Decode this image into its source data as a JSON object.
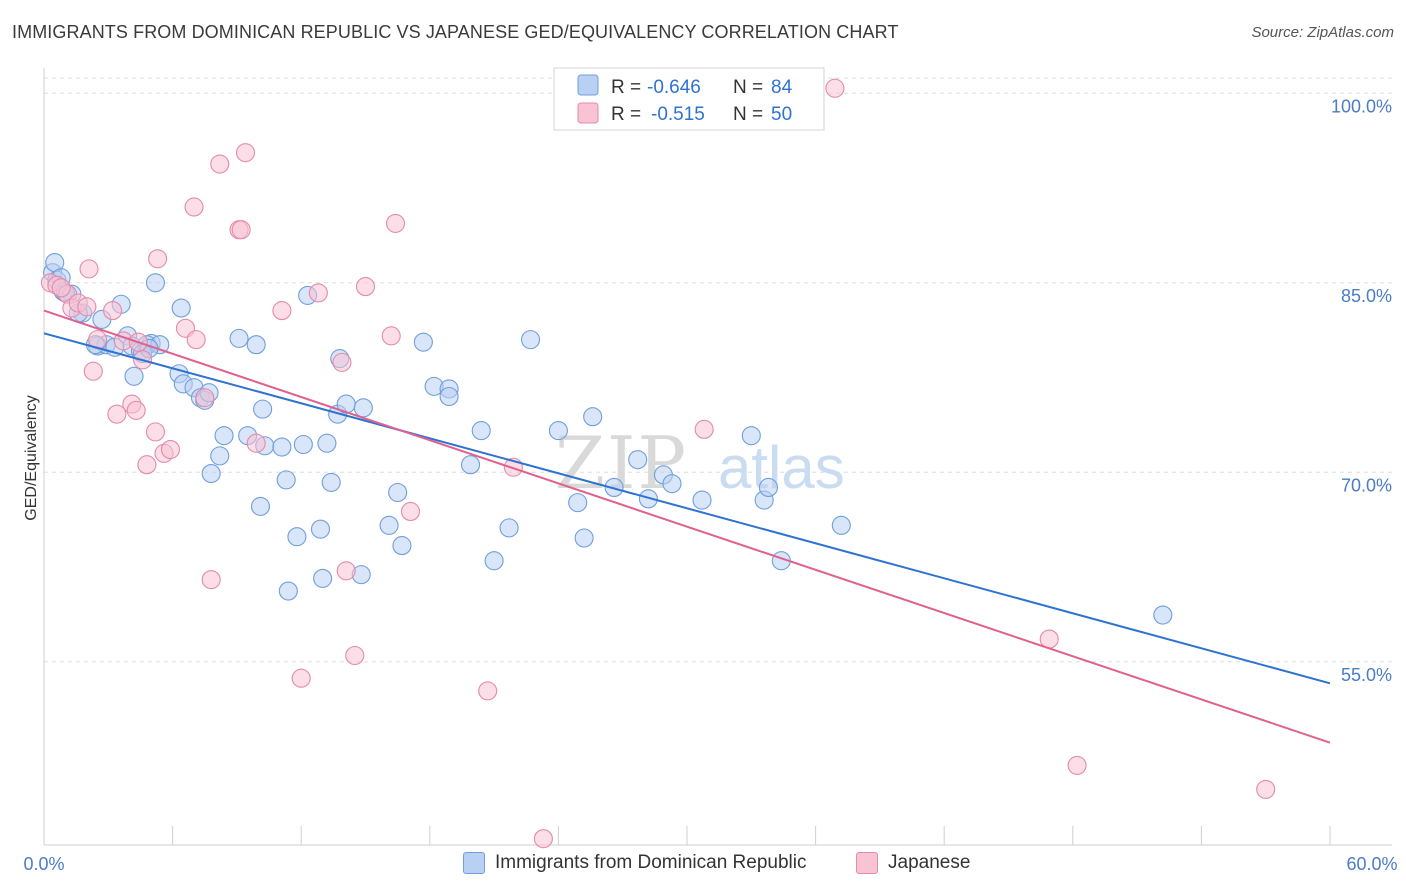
{
  "header": {
    "title": "IMMIGRANTS FROM DOMINICAN REPUBLIC VS JAPANESE GED/EQUIVALENCY CORRELATION CHART",
    "source": "Source: ZipAtlas.com"
  },
  "watermark": {
    "part1": "ZIP",
    "part2": "atlas"
  },
  "colors": {
    "blue_fill": "#b9d0f2",
    "blue_stroke": "#6f9fdc",
    "blue_line": "#2e72d2",
    "pink_fill": "#f8c3d3",
    "pink_stroke": "#e58aa8",
    "pink_line": "#e0618e",
    "tick_text": "#4a7cc7",
    "grid": "#dddddd"
  },
  "legend": {
    "rows": [
      {
        "r_label": "R =",
        "r_value": "-0.646",
        "n_label": "N =",
        "n_value": "84"
      },
      {
        "r_label": "R =",
        "r_value": "-0.515",
        "n_label": "N =",
        "n_value": "50"
      }
    ]
  },
  "bottom_legend": {
    "items": [
      {
        "label": "Immigrants from Dominican Republic"
      },
      {
        "label": "Japanese"
      }
    ]
  },
  "chart_data": {
    "type": "scatter",
    "title": "IMMIGRANTS FROM DOMINICAN REPUBLIC VS JAPANESE GED/EQUIVALENCY CORRELATION CHART",
    "xlabel": "",
    "ylabel": "GED/Equivalency",
    "xlim": [
      0,
      60
    ],
    "ylim": [
      40.5,
      102
    ],
    "x_tick_labels": [
      "0.0%",
      "60.0%"
    ],
    "y_ticks": [
      55,
      70,
      85,
      100
    ],
    "y_tick_labels": [
      "55.0%",
      "70.0%",
      "85.0%",
      "100.0%"
    ],
    "grid": "horizontal dashed",
    "legend_position": "top-center",
    "series": [
      {
        "name": "Immigrants from Dominican Republic",
        "color": "#b9d0f2",
        "trend": {
          "x": [
            0,
            60
          ],
          "y": [
            81.0,
            53.3
          ]
        },
        "points": [
          [
            0.4,
            85.8
          ],
          [
            0.6,
            85.2
          ],
          [
            0.9,
            84.3
          ],
          [
            1.3,
            84.1
          ],
          [
            1.8,
            82.6
          ],
          [
            2.5,
            80.0
          ],
          [
            2.7,
            82.1
          ],
          [
            3.6,
            83.3
          ],
          [
            3.9,
            80.8
          ],
          [
            4.1,
            80.0
          ],
          [
            4.5,
            79.6
          ],
          [
            5.2,
            85.0
          ],
          [
            5.0,
            80.2
          ],
          [
            4.8,
            80.1
          ],
          [
            2.9,
            80.1
          ],
          [
            4.2,
            77.6
          ],
          [
            5.4,
            80.1
          ],
          [
            4.6,
            79.4
          ],
          [
            6.4,
            83.0
          ],
          [
            6.3,
            77.8
          ],
          [
            6.5,
            77.0
          ],
          [
            7.0,
            76.7
          ],
          [
            7.3,
            75.9
          ],
          [
            7.5,
            75.7
          ],
          [
            7.7,
            76.3
          ],
          [
            8.4,
            72.9
          ],
          [
            8.2,
            71.3
          ],
          [
            7.8,
            69.9
          ],
          [
            9.1,
            80.6
          ],
          [
            9.9,
            80.1
          ],
          [
            10.2,
            75.0
          ],
          [
            9.5,
            72.9
          ],
          [
            10.3,
            72.1
          ],
          [
            10.1,
            67.3
          ],
          [
            11.3,
            69.4
          ],
          [
            11.1,
            72.0
          ],
          [
            12.1,
            72.2
          ],
          [
            11.8,
            64.9
          ],
          [
            11.4,
            60.6
          ],
          [
            12.3,
            84.0
          ],
          [
            13.0,
            61.6
          ],
          [
            13.2,
            72.3
          ],
          [
            12.9,
            65.5
          ],
          [
            13.7,
            74.6
          ],
          [
            14.1,
            75.4
          ],
          [
            13.4,
            69.2
          ],
          [
            13.8,
            79.0
          ],
          [
            14.9,
            75.1
          ],
          [
            14.8,
            61.9
          ],
          [
            16.1,
            65.8
          ],
          [
            16.7,
            64.2
          ],
          [
            16.5,
            68.4
          ],
          [
            17.7,
            80.3
          ],
          [
            18.2,
            76.8
          ],
          [
            18.9,
            76.6
          ],
          [
            18.9,
            76.0
          ],
          [
            19.9,
            70.6
          ],
          [
            20.4,
            73.3
          ],
          [
            21.0,
            63.0
          ],
          [
            21.7,
            65.6
          ],
          [
            22.7,
            80.5
          ],
          [
            24.0,
            73.3
          ],
          [
            24.9,
            67.6
          ],
          [
            25.2,
            64.8
          ],
          [
            25.6,
            74.4
          ],
          [
            26.6,
            68.8
          ],
          [
            27.7,
            71.0
          ],
          [
            28.2,
            67.9
          ],
          [
            28.9,
            69.8
          ],
          [
            29.3,
            69.1
          ],
          [
            30.7,
            67.8
          ],
          [
            33.0,
            72.9
          ],
          [
            33.6,
            67.8
          ],
          [
            33.8,
            68.8
          ],
          [
            34.4,
            63.0
          ],
          [
            37.2,
            65.8
          ],
          [
            52.2,
            58.7
          ],
          [
            1.0,
            84.2
          ],
          [
            0.5,
            86.6
          ],
          [
            0.8,
            85.4
          ],
          [
            1.6,
            82.6
          ],
          [
            2.4,
            80.1
          ],
          [
            3.3,
            79.9
          ],
          [
            4.9,
            79.8
          ]
        ]
      },
      {
        "name": "Japanese",
        "color": "#f8c3d3",
        "trend": {
          "x": [
            0,
            60
          ],
          "y": [
            82.8,
            48.6
          ]
        },
        "points": [
          [
            0.3,
            85.0
          ],
          [
            0.6,
            84.8
          ],
          [
            1.1,
            84.1
          ],
          [
            1.3,
            83.0
          ],
          [
            1.6,
            83.4
          ],
          [
            2.1,
            86.1
          ],
          [
            2.5,
            80.5
          ],
          [
            2.3,
            78.0
          ],
          [
            3.2,
            82.8
          ],
          [
            3.4,
            74.6
          ],
          [
            3.7,
            80.4
          ],
          [
            4.1,
            75.4
          ],
          [
            4.3,
            74.9
          ],
          [
            4.6,
            78.9
          ],
          [
            4.8,
            70.6
          ],
          [
            5.2,
            73.2
          ],
          [
            5.3,
            86.9
          ],
          [
            5.6,
            71.5
          ],
          [
            5.9,
            71.8
          ],
          [
            6.6,
            81.4
          ],
          [
            7.0,
            91.0
          ],
          [
            7.1,
            80.5
          ],
          [
            7.5,
            75.9
          ],
          [
            7.8,
            61.5
          ],
          [
            8.2,
            94.4
          ],
          [
            9.1,
            89.2
          ],
          [
            9.2,
            89.2
          ],
          [
            9.4,
            95.3
          ],
          [
            9.9,
            72.3
          ],
          [
            11.1,
            82.8
          ],
          [
            12.0,
            53.7
          ],
          [
            12.8,
            84.2
          ],
          [
            13.9,
            78.7
          ],
          [
            14.1,
            62.2
          ],
          [
            14.5,
            55.5
          ],
          [
            15.0,
            84.7
          ],
          [
            16.2,
            80.8
          ],
          [
            16.4,
            89.7
          ],
          [
            17.1,
            66.9
          ],
          [
            20.7,
            52.7
          ],
          [
            21.9,
            70.4
          ],
          [
            23.3,
            41.0
          ],
          [
            30.8,
            73.4
          ],
          [
            36.9,
            100.4
          ],
          [
            46.9,
            56.8
          ],
          [
            48.2,
            46.8
          ],
          [
            57.0,
            44.9
          ],
          [
            0.8,
            84.6
          ],
          [
            2.0,
            83.1
          ],
          [
            4.4,
            80.3
          ]
        ]
      }
    ]
  }
}
